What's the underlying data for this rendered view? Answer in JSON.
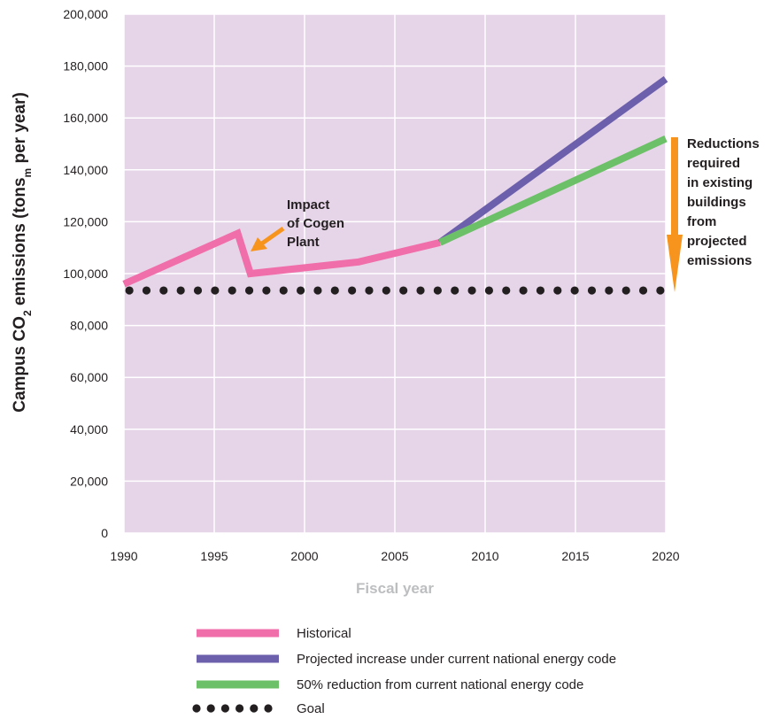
{
  "chart_data": {
    "type": "line",
    "title": "",
    "xlabel": "Fiscal year",
    "ylabel": {
      "prefix": "Campus CO",
      "sub1": "2",
      "middle": " emissions (tons",
      "sub2": "m",
      "suffix": " per year)"
    },
    "xlim": [
      1990,
      2020
    ],
    "ylim": [
      0,
      200000
    ],
    "x_ticks": [
      1990,
      1995,
      2000,
      2005,
      2010,
      2015,
      2020
    ],
    "x_tick_labels": [
      "1990",
      "1995",
      "2000",
      "2005",
      "2010",
      "2015",
      "2020"
    ],
    "y_ticks": [
      0,
      20000,
      40000,
      60000,
      80000,
      100000,
      120000,
      140000,
      160000,
      180000,
      200000
    ],
    "y_tick_labels": [
      "0",
      "20,000",
      "40,000",
      "60,000",
      "80,000",
      "100,000",
      "120,000",
      "140,000",
      "160,000",
      "180,000",
      "200,000"
    ],
    "grid": true,
    "background_color": "#e6d5e8",
    "series": [
      {
        "name": "Historical",
        "color": "#f06eaa",
        "style": "solid",
        "x": [
          1990,
          1996.3,
          1997,
          2003,
          2007.5
        ],
        "y": [
          96000,
          115500,
          100000,
          104500,
          112000
        ]
      },
      {
        "name": "Projected increase under current national energy code",
        "color": "#6c5fab",
        "style": "solid",
        "x": [
          2007.5,
          2020
        ],
        "y": [
          112000,
          175000
        ]
      },
      {
        "name": "50% reduction from current national energy code",
        "color": "#6cc067",
        "style": "solid",
        "x": [
          2007.5,
          2020
        ],
        "y": [
          112000,
          152000
        ]
      },
      {
        "name": "Goal",
        "color": "#231f20",
        "style": "dotted",
        "x": [
          1990,
          2020
        ],
        "y": [
          93500,
          93500
        ]
      }
    ],
    "annotations": [
      {
        "id": "cogen",
        "lines": [
          "Impact",
          "of Cogen",
          "Plant"
        ],
        "color": "#f7941d"
      },
      {
        "id": "reductions",
        "lines": [
          "Reductions",
          "required",
          "in existing",
          "buildings",
          "from",
          "projected",
          "emissions"
        ],
        "color": "#f7941d"
      }
    ],
    "legend_position": "bottom"
  }
}
